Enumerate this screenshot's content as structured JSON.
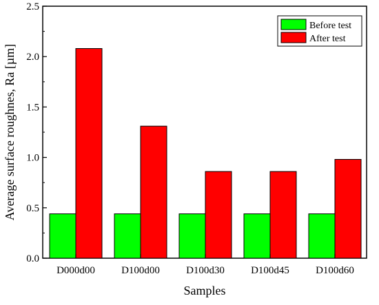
{
  "chart_data": {
    "type": "bar",
    "xlabel": "Samples",
    "ylabel": "Average surface roughnes, Ra [µm]",
    "categories": [
      "D000d00",
      "D100d00",
      "D100d30",
      "D100d45",
      "D100d60"
    ],
    "series": [
      {
        "name": "Before test",
        "color": "#00ff00",
        "values": [
          0.44,
          0.44,
          0.44,
          0.44,
          0.44
        ]
      },
      {
        "name": "After test",
        "color": "#ff0000",
        "values": [
          2.08,
          1.31,
          0.86,
          0.86,
          0.98
        ]
      }
    ],
    "ylim": [
      0.0,
      2.5
    ],
    "yticks": [
      "0.0",
      "0.5",
      "1.0",
      "1.5",
      "2.0",
      "2.5"
    ],
    "grid": false,
    "legend_position": "top-right"
  }
}
